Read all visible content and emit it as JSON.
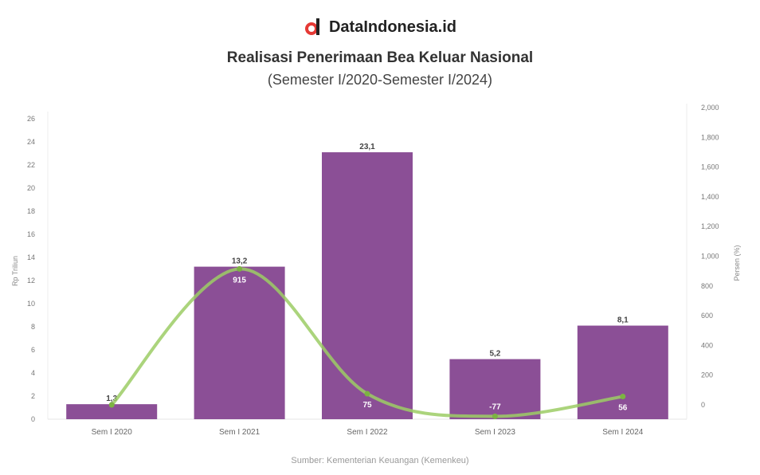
{
  "brand": {
    "name": "DataIndonesia.id",
    "logo_colors": [
      "#e53935",
      "#222222"
    ]
  },
  "chart_data": {
    "type": "bar+line",
    "title": "Realisasi Penerimaan Bea Keluar Nasional",
    "subtitle": "(Semester I/2020-Semester I/2024)",
    "categories": [
      "Sem I 2020",
      "Sem I 2021",
      "Sem I 2022",
      "Sem I 2023",
      "Sem I 2024"
    ],
    "series": [
      {
        "type": "bar",
        "axis": "left",
        "values": [
          1.3,
          13.2,
          23.1,
          5.2,
          8.1
        ],
        "labels": [
          "1,3",
          "13,2",
          "23,1",
          "5,2",
          "8,1"
        ],
        "color": "#8b4f96"
      },
      {
        "type": "line",
        "axis": "right",
        "values": [
          null,
          915,
          75,
          -77,
          56
        ],
        "labels": [
          "",
          "915",
          "75",
          "-77",
          "56"
        ],
        "color": "#9ccc65"
      }
    ],
    "ylabel_left": "Rp Triliun",
    "ylabel_right": "Persen (%)",
    "ylim_left": [
      0,
      26
    ],
    "yticks_left": [
      0,
      2,
      4,
      6,
      8,
      10,
      12,
      14,
      16,
      18,
      20,
      22,
      24,
      26
    ],
    "ylim_right": [
      0,
      2000
    ],
    "yticks_right": [
      0,
      200,
      400,
      600,
      800,
      1000,
      1200,
      1400,
      1600,
      1800,
      2000
    ],
    "grid": false,
    "source": "Sumber: Kementerian Keuangan (Kemenkeu)"
  }
}
